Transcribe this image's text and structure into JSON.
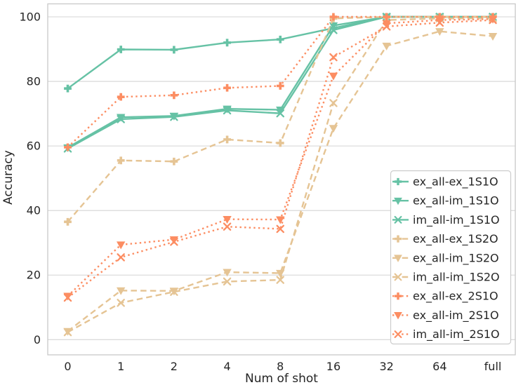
{
  "chart_data": {
    "type": "line",
    "title": "",
    "xlabel": "Num of shot",
    "ylabel": "Accuracy",
    "x_categories": [
      "0",
      "1",
      "2",
      "4",
      "8",
      "16",
      "32",
      "64",
      "full"
    ],
    "yticks": [
      0,
      20,
      40,
      60,
      80,
      100
    ],
    "ylim": [
      -4,
      104
    ],
    "grid": "horizontal-only",
    "legend_position": "lower-right-inside",
    "text_color": "#262626",
    "grid_color": "#d4d4d4",
    "spine_color": "#c9c9c9",
    "series": [
      {
        "name": "ex_all-ex_1S1O",
        "color": "#66c2a5",
        "linestyle": "solid",
        "marker": "plus",
        "values": [
          77.8,
          89.9,
          89.8,
          92.0,
          93.0,
          96.5,
          100,
          100,
          100
        ]
      },
      {
        "name": "ex_all-im_1S1O",
        "color": "#66c2a5",
        "linestyle": "solid",
        "marker": "triangle-down",
        "values": [
          59.5,
          68.9,
          69.3,
          71.5,
          71.2,
          97.3,
          100,
          100,
          100
        ]
      },
      {
        "name": "im_all-im_1S1O",
        "color": "#66c2a5",
        "linestyle": "solid",
        "marker": "x",
        "values": [
          59.2,
          68.3,
          69.0,
          71.0,
          70.1,
          95.9,
          100,
          100,
          100
        ]
      },
      {
        "name": "ex_all-ex_1S2O",
        "color": "#e5c494",
        "linestyle": "dashed",
        "marker": "plus",
        "values": [
          36.5,
          55.5,
          55.2,
          62.0,
          60.9,
          99.5,
          100,
          100,
          100
        ]
      },
      {
        "name": "ex_all-im_1S2O",
        "color": "#e5c494",
        "linestyle": "dashed",
        "marker": "triangle-down",
        "values": [
          2.6,
          15.2,
          15.1,
          20.9,
          20.6,
          65.5,
          91.0,
          95.5,
          94.0
        ]
      },
      {
        "name": "im_all-im_1S2O",
        "color": "#e5c494",
        "linestyle": "dashed",
        "marker": "x",
        "values": [
          2.3,
          11.4,
          14.8,
          18.0,
          18.5,
          73.3,
          99.0,
          99.5,
          99.5
        ]
      },
      {
        "name": "ex_all-ex_2S1O",
        "color": "#fc8d62",
        "linestyle": "dotted",
        "marker": "plus",
        "values": [
          59.6,
          75.2,
          75.7,
          78.0,
          78.6,
          100,
          100,
          100,
          100
        ]
      },
      {
        "name": "ex_all-im_2S1O",
        "color": "#fc8d62",
        "linestyle": "dotted",
        "marker": "triangle-down",
        "values": [
          13.5,
          29.4,
          31.0,
          37.3,
          37.2,
          81.7,
          98.0,
          99.0,
          99.3
        ]
      },
      {
        "name": "im_all-im_2S1O",
        "color": "#fc8d62",
        "linestyle": "dotted",
        "marker": "x",
        "values": [
          13.0,
          25.5,
          30.3,
          35.0,
          34.3,
          87.5,
          97.0,
          98.2,
          99.0
        ]
      }
    ]
  }
}
